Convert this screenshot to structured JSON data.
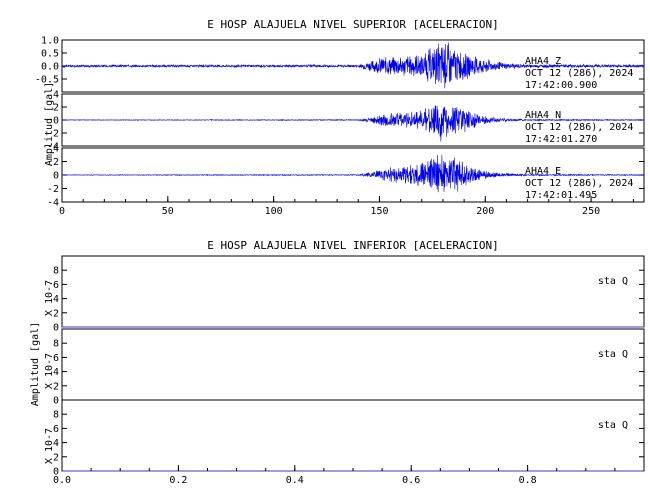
{
  "chart_data": [
    {
      "type": "line",
      "title": "E HOSP ALAJUELA NIVEL SUPERIOR [ACELERACION]",
      "ylabel": "Amplitud [gal]",
      "xlim": [
        0,
        275
      ],
      "x_ticks": [
        "0",
        "50",
        "100",
        "150",
        "200",
        "250"
      ],
      "panels": [
        {
          "channel": "AHA4   Z",
          "date": "OCT 12 (286), 2024",
          "time": "17:42:00.900",
          "ylim": [
            -1.0,
            1.0
          ],
          "y_ticks": [
            "1.0",
            "0.5",
            "0.0",
            "-0.5"
          ],
          "series": {
            "x": [
              0,
              140,
              145,
              150,
              155,
              160,
              165,
              170,
              175,
              180,
              185,
              190,
              195,
              200,
              205,
              210,
              220,
              275
            ],
            "envelope": [
              0.05,
              0.05,
              0.2,
              0.35,
              0.45,
              0.4,
              0.45,
              0.55,
              0.75,
              1.0,
              0.85,
              0.6,
              0.4,
              0.3,
              0.2,
              0.12,
              0.07,
              0.06
            ]
          }
        },
        {
          "channel": "AHA4   N",
          "date": "OCT 12 (286), 2024",
          "time": "17:42:01.270",
          "ylim": [
            -4,
            4
          ],
          "y_ticks": [
            "4",
            "2",
            "0",
            "-2",
            "-4"
          ],
          "series": {
            "x": [
              0,
              140,
              145,
              150,
              155,
              160,
              165,
              170,
              175,
              180,
              185,
              190,
              195,
              200,
              205,
              210,
              220,
              275
            ],
            "envelope": [
              0.05,
              0.08,
              0.4,
              0.9,
              1.3,
              1.2,
              1.4,
              1.8,
              2.6,
              3.8,
              3.2,
              2.2,
              1.2,
              0.7,
              0.4,
              0.25,
              0.12,
              0.08
            ]
          }
        },
        {
          "channel": "AHA4   E",
          "date": "OCT 12 (286), 2024",
          "time": "17:42:01.495",
          "ylim": [
            -4,
            4
          ],
          "y_ticks": [
            "4",
            "2",
            "0",
            "-2",
            "-4"
          ],
          "series": {
            "x": [
              0,
              140,
              145,
              150,
              155,
              160,
              165,
              170,
              175,
              180,
              185,
              190,
              195,
              200,
              205,
              210,
              220,
              275
            ],
            "envelope": [
              0.05,
              0.08,
              0.4,
              0.8,
              1.2,
              1.3,
              1.6,
              2.0,
              2.8,
              3.7,
              3.0,
              2.0,
              1.2,
              0.7,
              0.4,
              0.25,
              0.12,
              0.08
            ]
          }
        }
      ]
    },
    {
      "type": "line",
      "title": "E HOSP ALAJUELA NIVEL INFERIOR [ACELERACION]",
      "ylabel": "Amplitud [gal]",
      "xlim": [
        0,
        1.0
      ],
      "x_ticks": [
        "0.0",
        "0.2",
        "0.4",
        "0.6",
        "0.8"
      ],
      "panels": [
        {
          "channel": "sta   Q",
          "scale_label": "X 10-7",
          "ylim": [
            0,
            10
          ],
          "y_ticks": [
            "8",
            "6",
            "4",
            "2",
            "0"
          ],
          "series": {
            "x": [
              0,
              1
            ],
            "values": [
              0,
              0
            ]
          }
        },
        {
          "channel": "sta   Q",
          "scale_label": "X 10-7",
          "ylim": [
            0,
            10
          ],
          "y_ticks": [
            "8",
            "6",
            "4",
            "2",
            "0"
          ],
          "series": {
            "x": [
              0,
              1
            ],
            "values": [
              0,
              0
            ]
          }
        },
        {
          "channel": "sta   Q",
          "scale_label": "X 10-7",
          "ylim": [
            0,
            10
          ],
          "y_ticks": [
            "8",
            "6",
            "4",
            "2",
            "0"
          ],
          "series": {
            "x": [
              0,
              1
            ],
            "values": [
              0,
              0
            ]
          }
        }
      ]
    }
  ],
  "colors": {
    "trace": "#0000ee",
    "axis": "#000000",
    "flat_trace": "#3a3ad0"
  }
}
